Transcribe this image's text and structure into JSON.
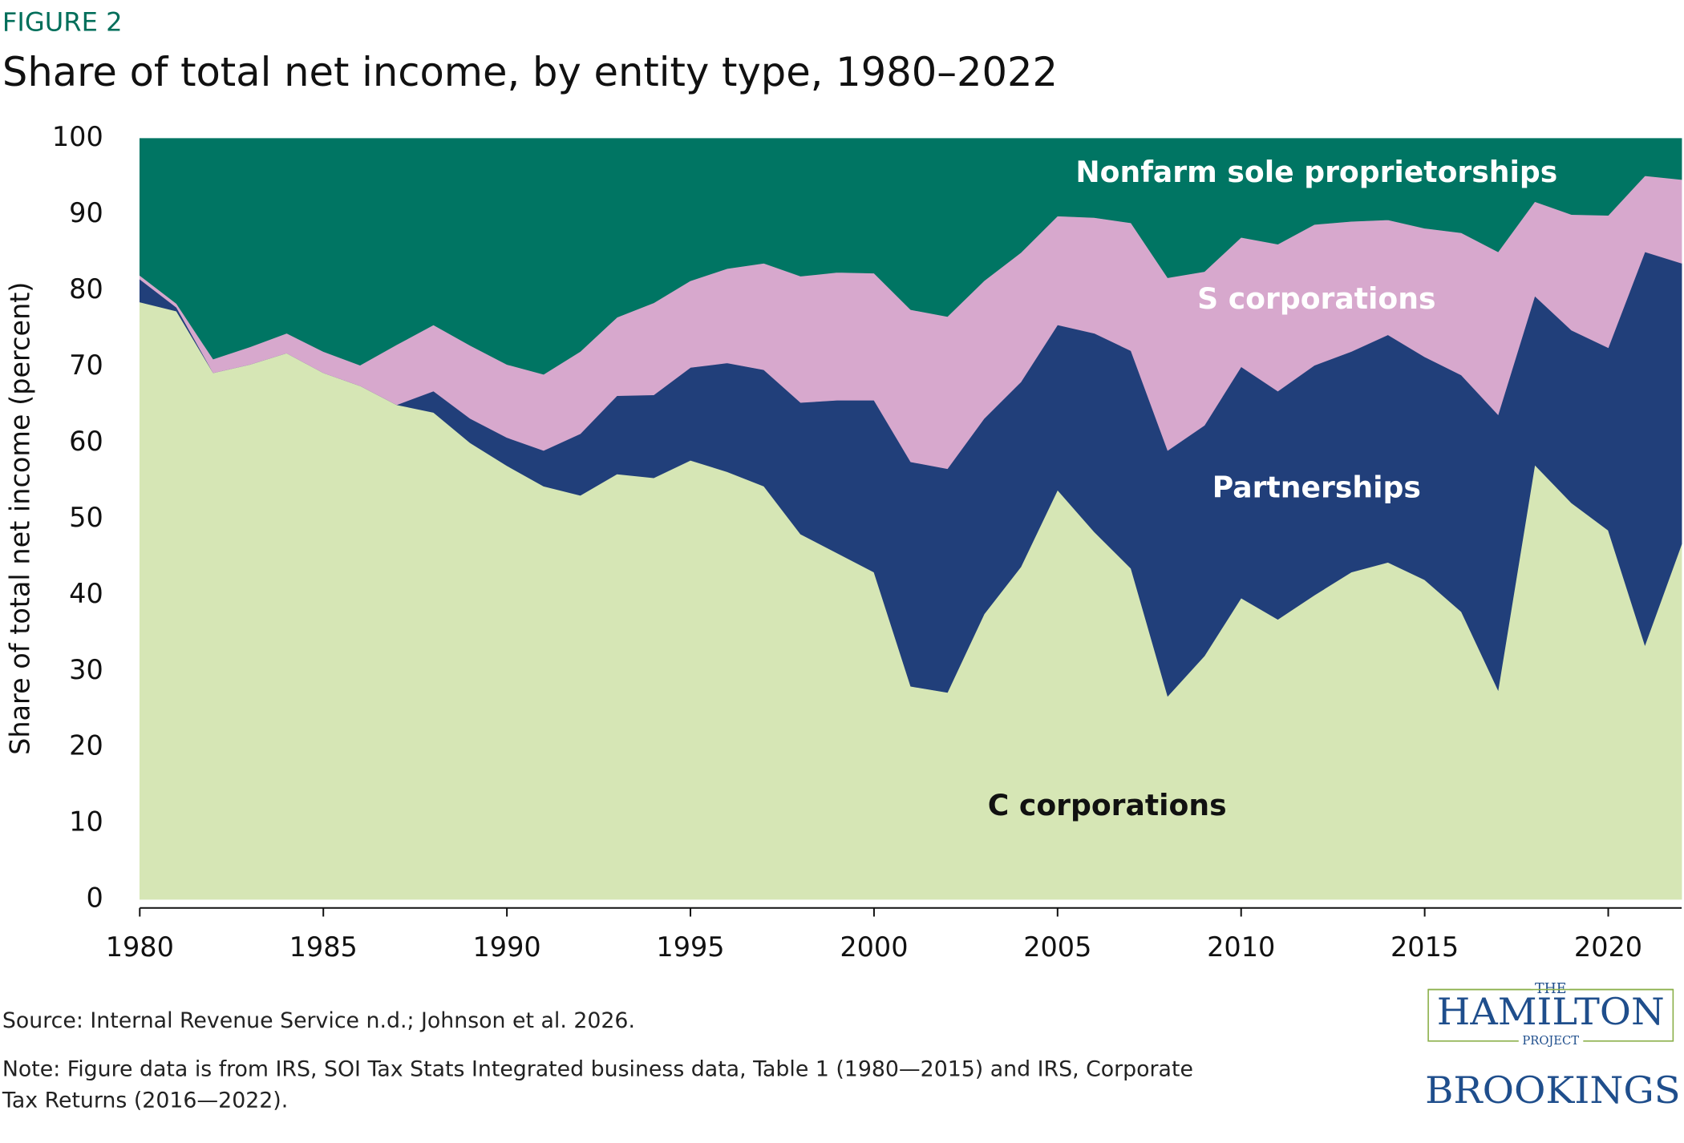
{
  "chart_data": {
    "type": "stacked_area",
    "figure_label": "FIGURE 2",
    "title": "Share of total net income, by entity type, 1980–2022",
    "y_label": "Share of total net income (percent)",
    "x": [
      1980,
      1981,
      1982,
      1983,
      1984,
      1985,
      1986,
      1987,
      1988,
      1989,
      1990,
      1991,
      1992,
      1993,
      1994,
      1995,
      1996,
      1997,
      1998,
      1999,
      2000,
      2001,
      2002,
      2003,
      2004,
      2005,
      2006,
      2007,
      2008,
      2009,
      2010,
      2011,
      2012,
      2013,
      2014,
      2015,
      2016,
      2017,
      2018,
      2019,
      2020,
      2021,
      2022
    ],
    "series": [
      {
        "name": "C corporations",
        "color": "#d6e6b5",
        "values": [
          78.5,
          77.3,
          69.2,
          70.3,
          71.8,
          69.2,
          67.5,
          65.0,
          64.0,
          60.0,
          57.0,
          54.3,
          53.1,
          55.9,
          55.4,
          57.7,
          56.2,
          54.3,
          48.0,
          45.5,
          43.0,
          28.0,
          27.2,
          37.5,
          43.7,
          53.8,
          48.3,
          43.5,
          26.7,
          32.0,
          39.6,
          36.8,
          40.0,
          43.0,
          44.3,
          42.0,
          37.8,
          27.5,
          57.1,
          52.1,
          48.5,
          33.4,
          46.7
        ]
      },
      {
        "name": "Partnerships",
        "color": "#213f7a",
        "values": [
          3.0,
          0.5,
          0,
          0,
          0,
          0,
          0,
          0,
          2.8,
          3.2,
          3.7,
          4.7,
          8.1,
          10.3,
          10.9,
          12.2,
          14.3,
          15.3,
          17.3,
          20.1,
          22.6,
          29.5,
          29.4,
          25.7,
          24.3,
          21.7,
          26.1,
          28.6,
          32.3,
          30.3,
          30.4,
          30.0,
          30.2,
          29.0,
          29.9,
          29.3,
          31.1,
          36.2,
          22.2,
          22.7,
          24.0,
          51.7,
          36.9
        ]
      },
      {
        "name": "S corporations",
        "color": "#d7a8cd",
        "values": [
          0.5,
          0.5,
          1.8,
          2.3,
          2.6,
          2.8,
          2.7,
          7.9,
          8.7,
          9.6,
          9.6,
          10.0,
          10.8,
          10.3,
          12.1,
          11.4,
          12.4,
          14.0,
          16.6,
          16.8,
          16.7,
          20.0,
          20.0,
          18.1,
          17.0,
          14.3,
          15.2,
          16.8,
          22.7,
          20.2,
          17.0,
          19.3,
          18.5,
          17.1,
          15.1,
          16.9,
          18.7,
          21.4,
          12.4,
          15.2,
          17.4,
          10.0,
          11.0
        ]
      },
      {
        "name": "Nonfarm sole proprietorships",
        "color": "#007563",
        "values": [
          18.0,
          21.7,
          29.0,
          27.4,
          25.6,
          28.0,
          29.8,
          27.1,
          24.5,
          27.2,
          29.7,
          31.0,
          28.0,
          23.5,
          21.6,
          18.7,
          17.1,
          16.4,
          18.1,
          17.6,
          17.7,
          22.5,
          23.4,
          18.7,
          15.0,
          10.2,
          10.4,
          11.1,
          18.3,
          17.5,
          13.0,
          13.9,
          11.3,
          10.9,
          10.7,
          11.8,
          12.4,
          14.9,
          8.3,
          10.0,
          10.1,
          4.9,
          5.4
        ]
      }
    ],
    "xlim": [
      1980,
      2022
    ],
    "xticks": [
      1980,
      1985,
      1990,
      1995,
      2000,
      2005,
      2010,
      2015,
      2020
    ],
    "ylim": [
      0,
      100
    ],
    "yticks": [
      0,
      10,
      20,
      30,
      40,
      50,
      60,
      70,
      80,
      90,
      100
    ],
    "grid": false,
    "source": "Source: Internal Revenue Service n.d.; Johnson et al. 2026.",
    "note": [
      "Note: Figure data is from IRS, SOI Tax Stats Integrated business data, Table 1 (1980—2015) and IRS, Corporate",
      "Tax Returns (2016—2022)."
    ]
  },
  "branding": {
    "the": "THE",
    "hamilton": "HAMILTON",
    "project": "PROJECT",
    "brookings": "BROOKINGS"
  }
}
